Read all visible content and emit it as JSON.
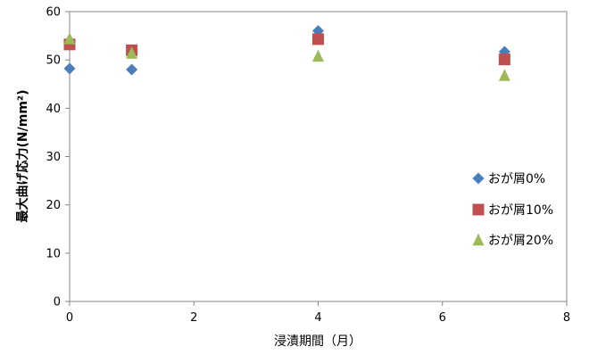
{
  "chart_data": {
    "type": "scatter",
    "title": "",
    "xlabel": "浸漬期間（月）",
    "ylabel": "最大曲げ応力(N/mm²)",
    "xlim": [
      0,
      8
    ],
    "ylim": [
      0,
      60
    ],
    "x_ticks": [
      "0",
      "2",
      "4",
      "6",
      "8"
    ],
    "y_ticks": [
      "0",
      "10",
      "20",
      "30",
      "40",
      "50",
      "60"
    ],
    "grid": false,
    "legend_position": "right",
    "series": [
      {
        "name": "おが屑0%",
        "marker": "diamond",
        "color": "#4a7ebb",
        "points": [
          {
            "x": 0,
            "y": 48.2
          },
          {
            "x": 1,
            "y": 48.0
          },
          {
            "x": 4,
            "y": 56.0
          },
          {
            "x": 7,
            "y": 51.7
          }
        ]
      },
      {
        "name": "おが屑10%",
        "marker": "square",
        "color": "#c0504d",
        "points": [
          {
            "x": 0,
            "y": 53.2
          },
          {
            "x": 1,
            "y": 52.0
          },
          {
            "x": 4,
            "y": 54.3
          },
          {
            "x": 7,
            "y": 50.1
          }
        ]
      },
      {
        "name": "おが屑20%",
        "marker": "triangle",
        "color": "#9bbb59",
        "points": [
          {
            "x": 0,
            "y": 54.4
          },
          {
            "x": 1,
            "y": 51.4
          },
          {
            "x": 4,
            "y": 50.8
          },
          {
            "x": 7,
            "y": 46.8
          }
        ]
      }
    ]
  }
}
